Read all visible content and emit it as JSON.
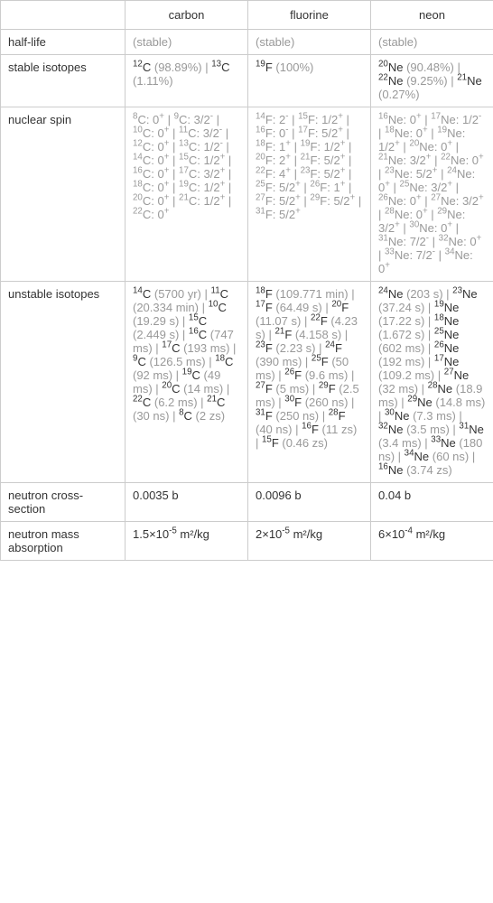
{
  "header": {
    "col1": "carbon",
    "col2": "fluorine",
    "col3": "neon"
  },
  "rows": {
    "half_life": {
      "label": "half-life",
      "carbon": "(stable)",
      "fluorine": "(stable)",
      "neon": "(stable)"
    },
    "stable_isotopes": {
      "label": "stable isotopes",
      "carbon_items": [
        {
          "mass": "12",
          "sym": "C",
          "note": " (98.89%)"
        },
        {
          "mass": "13",
          "sym": "C",
          "note": " (1.11%)"
        }
      ],
      "fluorine_items": [
        {
          "mass": "19",
          "sym": "F",
          "note": " (100%)"
        }
      ],
      "neon_items": [
        {
          "mass": "20",
          "sym": "Ne",
          "note": " (90.48%)"
        },
        {
          "mass": "22",
          "sym": "Ne",
          "note": " (9.25%)"
        },
        {
          "mass": "21",
          "sym": "Ne",
          "note": " (0.27%)"
        }
      ]
    },
    "nuclear_spin": {
      "label": "nuclear spin",
      "carbon_items": [
        {
          "mass": "8",
          "sym": "C",
          "spin": "0",
          "sign": "+"
        },
        {
          "mass": "9",
          "sym": "C",
          "spin": "3/2",
          "sign": "-"
        },
        {
          "mass": "10",
          "sym": "C",
          "spin": "0",
          "sign": "+"
        },
        {
          "mass": "11",
          "sym": "C",
          "spin": "3/2",
          "sign": "-"
        },
        {
          "mass": "12",
          "sym": "C",
          "spin": "0",
          "sign": "+"
        },
        {
          "mass": "13",
          "sym": "C",
          "spin": "1/2",
          "sign": "-"
        },
        {
          "mass": "14",
          "sym": "C",
          "spin": "0",
          "sign": "+"
        },
        {
          "mass": "15",
          "sym": "C",
          "spin": "1/2",
          "sign": "+"
        },
        {
          "mass": "16",
          "sym": "C",
          "spin": "0",
          "sign": "+"
        },
        {
          "mass": "17",
          "sym": "C",
          "spin": "3/2",
          "sign": "+"
        },
        {
          "mass": "18",
          "sym": "C",
          "spin": "0",
          "sign": "+"
        },
        {
          "mass": "19",
          "sym": "C",
          "spin": "1/2",
          "sign": "+"
        },
        {
          "mass": "20",
          "sym": "C",
          "spin": "0",
          "sign": "+"
        },
        {
          "mass": "21",
          "sym": "C",
          "spin": "1/2",
          "sign": "+"
        },
        {
          "mass": "22",
          "sym": "C",
          "spin": "0",
          "sign": "+"
        }
      ],
      "fluorine_items": [
        {
          "mass": "14",
          "sym": "F",
          "spin": "2",
          "sign": "-"
        },
        {
          "mass": "15",
          "sym": "F",
          "spin": "1/2",
          "sign": "+"
        },
        {
          "mass": "16",
          "sym": "F",
          "spin": "0",
          "sign": "-"
        },
        {
          "mass": "17",
          "sym": "F",
          "spin": "5/2",
          "sign": "+"
        },
        {
          "mass": "18",
          "sym": "F",
          "spin": "1",
          "sign": "+"
        },
        {
          "mass": "19",
          "sym": "F",
          "spin": "1/2",
          "sign": "+"
        },
        {
          "mass": "20",
          "sym": "F",
          "spin": "2",
          "sign": "+"
        },
        {
          "mass": "21",
          "sym": "F",
          "spin": "5/2",
          "sign": "+"
        },
        {
          "mass": "22",
          "sym": "F",
          "spin": "4",
          "sign": "+"
        },
        {
          "mass": "23",
          "sym": "F",
          "spin": "5/2",
          "sign": "+"
        },
        {
          "mass": "25",
          "sym": "F",
          "spin": "5/2",
          "sign": "+"
        },
        {
          "mass": "26",
          "sym": "F",
          "spin": "1",
          "sign": "+"
        },
        {
          "mass": "27",
          "sym": "F",
          "spin": "5/2",
          "sign": "+"
        },
        {
          "mass": "29",
          "sym": "F",
          "spin": "5/2",
          "sign": "+"
        },
        {
          "mass": "31",
          "sym": "F",
          "spin": "5/2",
          "sign": "+"
        }
      ],
      "neon_items": [
        {
          "mass": "16",
          "sym": "Ne",
          "spin": "0",
          "sign": "+"
        },
        {
          "mass": "17",
          "sym": "Ne",
          "spin": "1/2",
          "sign": "-"
        },
        {
          "mass": "18",
          "sym": "Ne",
          "spin": "0",
          "sign": "+"
        },
        {
          "mass": "19",
          "sym": "Ne",
          "spin": "1/2",
          "sign": "+"
        },
        {
          "mass": "20",
          "sym": "Ne",
          "spin": "0",
          "sign": "+"
        },
        {
          "mass": "21",
          "sym": "Ne",
          "spin": "3/2",
          "sign": "+"
        },
        {
          "mass": "22",
          "sym": "Ne",
          "spin": "0",
          "sign": "+"
        },
        {
          "mass": "23",
          "sym": "Ne",
          "spin": "5/2",
          "sign": "+"
        },
        {
          "mass": "24",
          "sym": "Ne",
          "spin": "0",
          "sign": "+"
        },
        {
          "mass": "25",
          "sym": "Ne",
          "spin": "3/2",
          "sign": "+"
        },
        {
          "mass": "26",
          "sym": "Ne",
          "spin": "0",
          "sign": "+"
        },
        {
          "mass": "27",
          "sym": "Ne",
          "spin": "3/2",
          "sign": "+"
        },
        {
          "mass": "28",
          "sym": "Ne",
          "spin": "0",
          "sign": "+"
        },
        {
          "mass": "29",
          "sym": "Ne",
          "spin": "3/2",
          "sign": "+"
        },
        {
          "mass": "30",
          "sym": "Ne",
          "spin": "0",
          "sign": "+"
        },
        {
          "mass": "31",
          "sym": "Ne",
          "spin": "7/2",
          "sign": "-"
        },
        {
          "mass": "32",
          "sym": "Ne",
          "spin": "0",
          "sign": "+"
        },
        {
          "mass": "33",
          "sym": "Ne",
          "spin": "7/2",
          "sign": "-"
        },
        {
          "mass": "34",
          "sym": "Ne",
          "spin": "0",
          "sign": "+"
        }
      ]
    },
    "unstable_isotopes": {
      "label": "unstable isotopes",
      "carbon_items": [
        {
          "mass": "14",
          "sym": "C",
          "note": " (5700 yr)"
        },
        {
          "mass": "11",
          "sym": "C",
          "note": " (20.334 min)"
        },
        {
          "mass": "10",
          "sym": "C",
          "note": " (19.29 s)"
        },
        {
          "mass": "15",
          "sym": "C",
          "note": " (2.449 s)"
        },
        {
          "mass": "16",
          "sym": "C",
          "note": " (747 ms)"
        },
        {
          "mass": "17",
          "sym": "C",
          "note": " (193 ms)"
        },
        {
          "mass": "9",
          "sym": "C",
          "note": " (126.5 ms)"
        },
        {
          "mass": "18",
          "sym": "C",
          "note": " (92 ms)"
        },
        {
          "mass": "19",
          "sym": "C",
          "note": " (49 ms)"
        },
        {
          "mass": "20",
          "sym": "C",
          "note": " (14 ms)"
        },
        {
          "mass": "22",
          "sym": "C",
          "note": " (6.2 ms)"
        },
        {
          "mass": "21",
          "sym": "C",
          "note": " (30 ns)"
        },
        {
          "mass": "8",
          "sym": "C",
          "note": " (2 zs)"
        }
      ],
      "fluorine_items": [
        {
          "mass": "18",
          "sym": "F",
          "note": " (109.771 min)"
        },
        {
          "mass": "17",
          "sym": "F",
          "note": " (64.49 s)"
        },
        {
          "mass": "20",
          "sym": "F",
          "note": " (11.07 s)"
        },
        {
          "mass": "22",
          "sym": "F",
          "note": " (4.23 s)"
        },
        {
          "mass": "21",
          "sym": "F",
          "note": " (4.158 s)"
        },
        {
          "mass": "23",
          "sym": "F",
          "note": " (2.23 s)"
        },
        {
          "mass": "24",
          "sym": "F",
          "note": " (390 ms)"
        },
        {
          "mass": "25",
          "sym": "F",
          "note": " (50 ms)"
        },
        {
          "mass": "26",
          "sym": "F",
          "note": " (9.6 ms)"
        },
        {
          "mass": "27",
          "sym": "F",
          "note": " (5 ms)"
        },
        {
          "mass": "29",
          "sym": "F",
          "note": " (2.5 ms)"
        },
        {
          "mass": "30",
          "sym": "F",
          "note": " (260 ns)"
        },
        {
          "mass": "31",
          "sym": "F",
          "note": " (250 ns)"
        },
        {
          "mass": "28",
          "sym": "F",
          "note": " (40 ns)"
        },
        {
          "mass": "16",
          "sym": "F",
          "note": " (11 zs)"
        },
        {
          "mass": "15",
          "sym": "F",
          "note": " (0.46 zs)"
        }
      ],
      "neon_items": [
        {
          "mass": "24",
          "sym": "Ne",
          "note": " (203 s)"
        },
        {
          "mass": "23",
          "sym": "Ne",
          "note": " (37.24 s)"
        },
        {
          "mass": "19",
          "sym": "Ne",
          "note": " (17.22 s)"
        },
        {
          "mass": "18",
          "sym": "Ne",
          "note": " (1.672 s)"
        },
        {
          "mass": "25",
          "sym": "Ne",
          "note": " (602 ms)"
        },
        {
          "mass": "26",
          "sym": "Ne",
          "note": " (192 ms)"
        },
        {
          "mass": "17",
          "sym": "Ne",
          "note": " (109.2 ms)"
        },
        {
          "mass": "27",
          "sym": "Ne",
          "note": " (32 ms)"
        },
        {
          "mass": "28",
          "sym": "Ne",
          "note": " (18.9 ms)"
        },
        {
          "mass": "29",
          "sym": "Ne",
          "note": " (14.8 ms)"
        },
        {
          "mass": "30",
          "sym": "Ne",
          "note": " (7.3 ms)"
        },
        {
          "mass": "32",
          "sym": "Ne",
          "note": " (3.5 ms)"
        },
        {
          "mass": "31",
          "sym": "Ne",
          "note": " (3.4 ms)"
        },
        {
          "mass": "33",
          "sym": "Ne",
          "note": " (180 ns)"
        },
        {
          "mass": "34",
          "sym": "Ne",
          "note": " (60 ns)"
        },
        {
          "mass": "16",
          "sym": "Ne",
          "note": " (3.74 zs)"
        }
      ]
    },
    "neutron_cross_section": {
      "label": "neutron cross-section",
      "carbon": "0.0035 b",
      "fluorine": "0.0096 b",
      "neon": "0.04 b"
    },
    "neutron_mass_absorption": {
      "label": "neutron mass absorption",
      "carbon": {
        "base": "1.5×10",
        "exp": "-5",
        "unit": " m²/kg"
      },
      "fluorine": {
        "base": "2×10",
        "exp": "-5",
        "unit": " m²/kg"
      },
      "neon": {
        "base": "6×10",
        "exp": "-4",
        "unit": " m²/kg"
      }
    }
  },
  "separator": " | ",
  "colon": ": "
}
